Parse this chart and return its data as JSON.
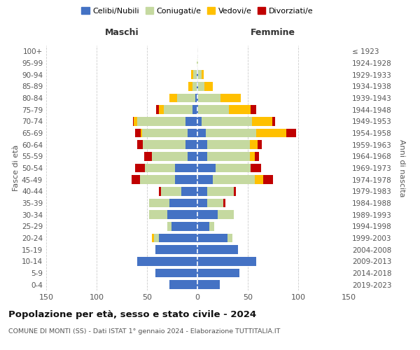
{
  "age_groups": [
    "0-4",
    "5-9",
    "10-14",
    "15-19",
    "20-24",
    "25-29",
    "30-34",
    "35-39",
    "40-44",
    "45-49",
    "50-54",
    "55-59",
    "60-64",
    "65-69",
    "70-74",
    "75-79",
    "80-84",
    "85-89",
    "90-94",
    "95-99",
    "100+"
  ],
  "birth_years": [
    "2019-2023",
    "2014-2018",
    "2009-2013",
    "2004-2008",
    "1999-2003",
    "1994-1998",
    "1989-1993",
    "1984-1988",
    "1979-1983",
    "1974-1978",
    "1969-1973",
    "1964-1968",
    "1959-1963",
    "1954-1958",
    "1949-1953",
    "1944-1948",
    "1939-1943",
    "1934-1938",
    "1929-1933",
    "1924-1928",
    "≤ 1923"
  ],
  "maschi": {
    "celibi": [
      28,
      42,
      60,
      42,
      38,
      26,
      30,
      28,
      16,
      22,
      22,
      10,
      12,
      10,
      12,
      5,
      2,
      1,
      1,
      0,
      0
    ],
    "coniugati": [
      0,
      0,
      0,
      0,
      5,
      4,
      18,
      20,
      20,
      35,
      30,
      35,
      42,
      45,
      48,
      28,
      18,
      4,
      3,
      1,
      0
    ],
    "vedovi": [
      0,
      0,
      0,
      0,
      2,
      0,
      0,
      0,
      0,
      0,
      0,
      0,
      0,
      1,
      3,
      5,
      8,
      4,
      2,
      0,
      0
    ],
    "divorziati": [
      0,
      0,
      0,
      0,
      0,
      0,
      0,
      0,
      2,
      8,
      10,
      8,
      6,
      6,
      1,
      3,
      0,
      0,
      0,
      0,
      0
    ]
  },
  "femmine": {
    "nubili": [
      22,
      42,
      58,
      40,
      30,
      12,
      20,
      10,
      10,
      15,
      18,
      10,
      10,
      8,
      4,
      1,
      1,
      1,
      1,
      0,
      0
    ],
    "coniugate": [
      0,
      0,
      0,
      0,
      5,
      5,
      16,
      16,
      26,
      42,
      35,
      42,
      42,
      50,
      50,
      30,
      22,
      6,
      3,
      1,
      0
    ],
    "vedove": [
      0,
      0,
      0,
      0,
      0,
      0,
      0,
      0,
      0,
      8,
      0,
      5,
      8,
      30,
      20,
      22,
      20,
      8,
      2,
      0,
      0
    ],
    "divorziate": [
      0,
      0,
      0,
      0,
      0,
      0,
      0,
      2,
      2,
      10,
      10,
      4,
      4,
      10,
      3,
      5,
      0,
      0,
      0,
      0,
      0
    ]
  },
  "colors": {
    "celibi": "#4472c4",
    "coniugati": "#c5d9a0",
    "vedovi": "#ffc000",
    "divorziati": "#c00000"
  },
  "xlim": 150,
  "title": "Popolazione per età, sesso e stato civile - 2024",
  "subtitle": "COMUNE DI MONTI (SS) - Dati ISTAT 1° gennaio 2024 - Elaborazione TUTTITALIA.IT",
  "xlabel_left": "Maschi",
  "xlabel_right": "Femmine",
  "ylabel_left": "Fasce di età",
  "ylabel_right": "Anni di nascita",
  "legend_labels": [
    "Celibi/Nubili",
    "Coniugati/e",
    "Vedovi/e",
    "Divorziati/e"
  ],
  "background_color": "#ffffff",
  "grid_color": "#cccccc"
}
